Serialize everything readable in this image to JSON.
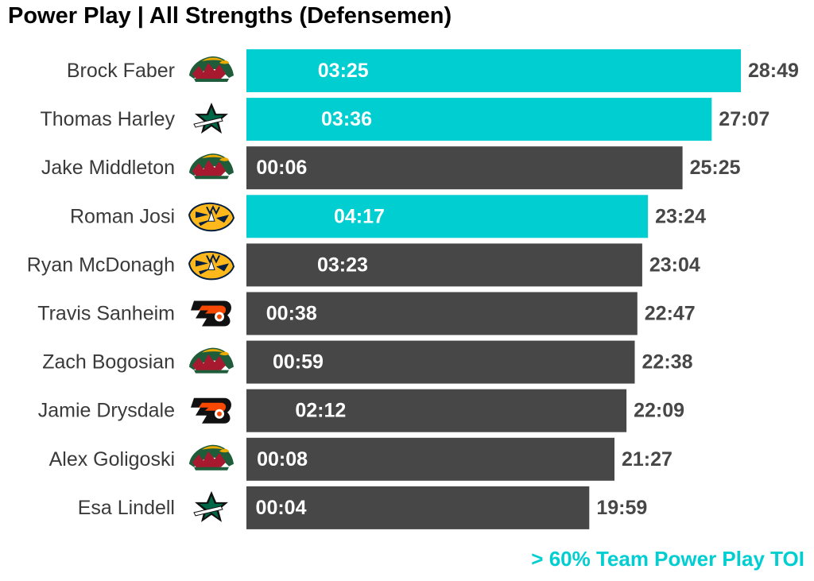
{
  "chart_data": {
    "type": "bar",
    "orientation": "horizontal",
    "title": "Power Play | All Strengths (Defensemen)",
    "players": [
      {
        "name": "Brock Faber",
        "team_logo": "minnesota-wild-logo",
        "total_toi": "28:49",
        "total_seconds": 1729,
        "pp_toi": "03:25",
        "above_threshold": true
      },
      {
        "name": "Thomas Harley",
        "team_logo": "dallas-stars-logo",
        "total_toi": "27:07",
        "total_seconds": 1627,
        "pp_toi": "03:36",
        "above_threshold": true
      },
      {
        "name": "Jake Middleton",
        "team_logo": "minnesota-wild-logo",
        "total_toi": "25:25",
        "total_seconds": 1525,
        "pp_toi": "00:06",
        "above_threshold": false
      },
      {
        "name": "Roman Josi",
        "team_logo": "nashville-predators-logo",
        "total_toi": "23:24",
        "total_seconds": 1404,
        "pp_toi": "04:17",
        "above_threshold": true
      },
      {
        "name": "Ryan McDonagh",
        "team_logo": "nashville-predators-logo",
        "total_toi": "23:04",
        "total_seconds": 1384,
        "pp_toi": "03:23",
        "above_threshold": false
      },
      {
        "name": "Travis Sanheim",
        "team_logo": "philadelphia-flyers-logo",
        "total_toi": "22:47",
        "total_seconds": 1367,
        "pp_toi": "00:38",
        "above_threshold": false
      },
      {
        "name": "Zach Bogosian",
        "team_logo": "minnesota-wild-logo",
        "total_toi": "22:38",
        "total_seconds": 1358,
        "pp_toi": "00:59",
        "above_threshold": false
      },
      {
        "name": "Jamie Drysdale",
        "team_logo": "philadelphia-flyers-logo",
        "total_toi": "22:09",
        "total_seconds": 1329,
        "pp_toi": "02:12",
        "above_threshold": false
      },
      {
        "name": "Alex Goligoski",
        "team_logo": "minnesota-wild-logo",
        "total_toi": "21:27",
        "total_seconds": 1287,
        "pp_toi": "00:08",
        "above_threshold": false
      },
      {
        "name": "Esa Lindell",
        "team_logo": "dallas-stars-logo",
        "total_toi": "19:59",
        "total_seconds": 1199,
        "pp_toi": "00:04",
        "above_threshold": false
      }
    ],
    "legend_note": "> 60% Team Power Play TOI",
    "colors": {
      "highlight": "#00CED1",
      "default": "#474747",
      "name_text": "#3a3a3a",
      "total_text": "#474747",
      "bar_text": "#ffffff",
      "note_text": "#00CED1"
    }
  }
}
